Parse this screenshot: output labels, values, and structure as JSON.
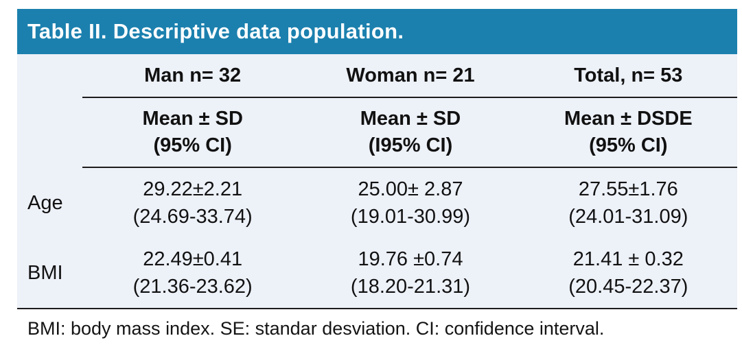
{
  "title": "Table II. Descriptive data population.",
  "colors": {
    "header_bg": "#1b80ae",
    "body_bg": "#edf1f8",
    "rule": "#1c1c1c",
    "title_text": "#ffffff"
  },
  "table": {
    "column_headers": [
      "Man n= 32",
      "Woman n= 21",
      "Total, n= 53"
    ],
    "sub_headers": [
      {
        "line1": "Mean ± SD",
        "line2": "(95% CI)"
      },
      {
        "line1": "Mean ± SD",
        "line2": "(I95% CI)"
      },
      {
        "line1": "Mean ± DSDE",
        "line2": "(95% CI)"
      }
    ],
    "rows": [
      {
        "label": "Age",
        "cells": [
          {
            "line1": "29.22±2.21",
            "line2": "(24.69-33.74)"
          },
          {
            "line1": "25.00± 2.87",
            "line2": "(19.01-30.99)"
          },
          {
            "line1": "27.55±1.76",
            "line2": "(24.01-31.09)"
          }
        ]
      },
      {
        "label": "BMI",
        "cells": [
          {
            "line1": "22.49±0.41",
            "line2": "(21.36-23.62)"
          },
          {
            "line1": "19.76 ±0.74",
            "line2": "(18.20-21.31)"
          },
          {
            "line1": "21.41 ± 0.32",
            "line2": "(20.45-22.37)"
          }
        ]
      }
    ]
  },
  "footnote": "BMI: body mass index. SE: standar desviation. CI: confidence interval."
}
